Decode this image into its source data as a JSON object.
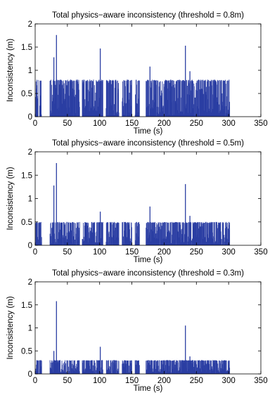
{
  "chart_data": [
    {
      "type": "bar",
      "title": "Total physics−aware inconsistency (threshold = 0.8m)",
      "xlabel": "Time (s)",
      "ylabel": "Inconsistency (m)",
      "xlim": [
        0,
        350
      ],
      "ylim": [
        0,
        2
      ],
      "xticks": [
        0,
        50,
        100,
        150,
        200,
        250,
        300,
        350
      ],
      "yticks": [
        "0",
        "0.5",
        "1",
        "1.5",
        "2"
      ],
      "grid": false,
      "color": "#2b3ea3",
      "threshold": 0.8,
      "segments": [
        [
          1,
          5
        ],
        [
          7,
          10
        ],
        [
          23,
          69
        ],
        [
          73,
          105
        ],
        [
          110,
          130
        ],
        [
          135,
          150
        ],
        [
          155,
          162
        ],
        [
          172,
          302
        ]
      ],
      "peaks": [
        {
          "x": 29,
          "y": 1.28
        },
        {
          "x": 33,
          "y": 1.76
        },
        {
          "x": 101,
          "y": 1.47
        },
        {
          "x": 178,
          "y": 1.08
        },
        {
          "x": 233,
          "y": 1.53
        },
        {
          "x": 240,
          "y": 0.98
        }
      ]
    },
    {
      "type": "bar",
      "title": "Total physics−aware inconsistency (threshold = 0.5m)",
      "xlabel": "Time (s)",
      "ylabel": "Inconsistency (m)",
      "xlim": [
        0,
        350
      ],
      "ylim": [
        0,
        2
      ],
      "xticks": [
        0,
        50,
        100,
        150,
        200,
        250,
        300,
        350
      ],
      "yticks": [
        "0",
        "0.5",
        "1",
        "1.5",
        "2"
      ],
      "grid": false,
      "color": "#2b3ea3",
      "threshold": 0.5,
      "segments": [
        [
          1,
          10
        ],
        [
          23,
          69
        ],
        [
          73,
          105
        ],
        [
          110,
          130
        ],
        [
          135,
          150
        ],
        [
          155,
          162
        ],
        [
          172,
          302
        ]
      ],
      "peaks": [
        {
          "x": 29,
          "y": 1.28
        },
        {
          "x": 33,
          "y": 1.76
        },
        {
          "x": 101,
          "y": 0.72
        },
        {
          "x": 178,
          "y": 0.83
        },
        {
          "x": 233,
          "y": 1.31
        },
        {
          "x": 240,
          "y": 0.63
        }
      ]
    },
    {
      "type": "bar",
      "title": "Total physics−aware inconsistency (threshold = 0.3m)",
      "xlabel": "Time (s)",
      "ylabel": "Inconsistency (m)",
      "xlim": [
        0,
        350
      ],
      "ylim": [
        0,
        2
      ],
      "xticks": [
        0,
        50,
        100,
        150,
        200,
        250,
        300,
        350
      ],
      "yticks": [
        "0",
        "0.5",
        "1",
        "1.5",
        "2"
      ],
      "grid": false,
      "color": "#2b3ea3",
      "threshold": 0.3,
      "segments": [
        [
          1,
          10
        ],
        [
          23,
          69
        ],
        [
          73,
          105
        ],
        [
          110,
          130
        ],
        [
          135,
          150
        ],
        [
          155,
          162
        ],
        [
          172,
          302
        ]
      ],
      "peaks": [
        {
          "x": 29,
          "y": 0.5
        },
        {
          "x": 33,
          "y": 1.58
        },
        {
          "x": 101,
          "y": 0.59
        },
        {
          "x": 233,
          "y": 1.05
        },
        {
          "x": 240,
          "y": 0.38
        }
      ]
    }
  ]
}
